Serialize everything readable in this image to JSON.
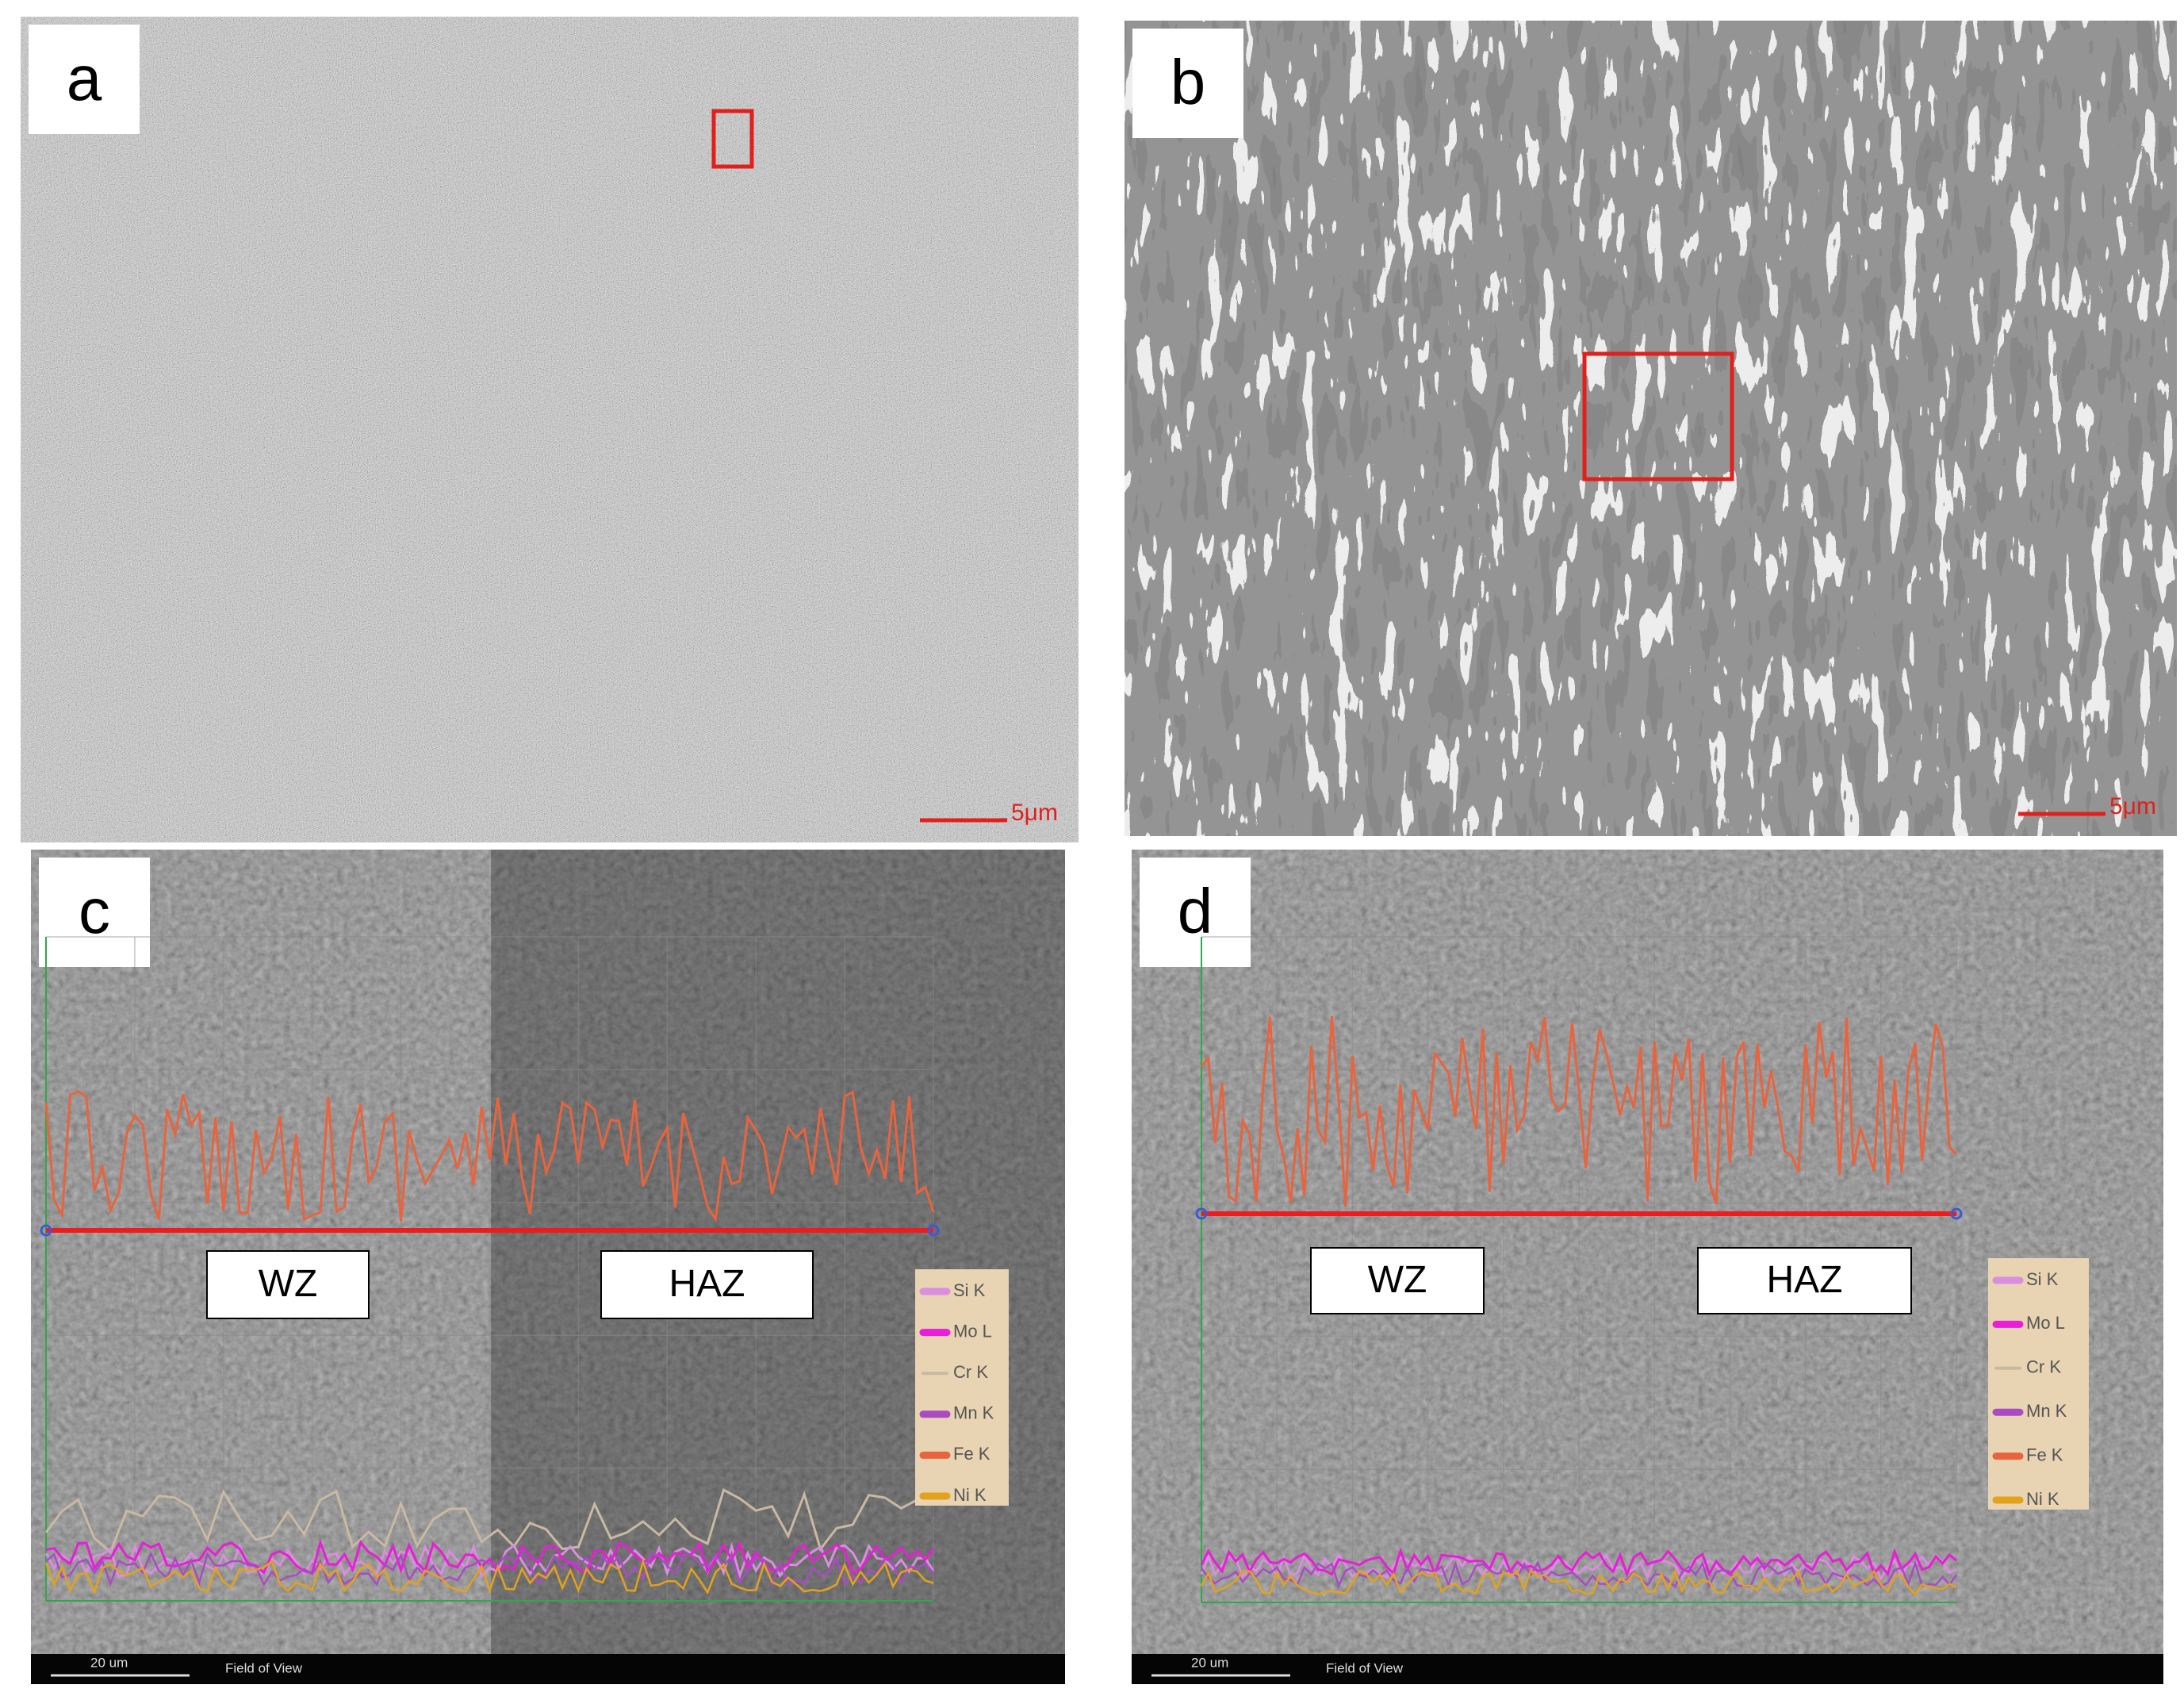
{
  "panels": [
    {
      "label": "a",
      "scale_bar": "5μm"
    },
    {
      "label": "b",
      "scale_bar": "5μm"
    },
    {
      "label": "c",
      "zones": [
        "WZ",
        "HAZ"
      ],
      "legend": [
        {
          "name": "Si K",
          "color": "#d98ee0"
        },
        {
          "name": "Mo L",
          "color": "#e81ed8"
        },
        {
          "name": "Cr K",
          "color": "#c9b9a2"
        },
        {
          "name": "Mn K",
          "color": "#a94cc4"
        },
        {
          "name": "Fe K",
          "color": "#e8643e"
        },
        {
          "name": "Ni K",
          "color": "#e3a21c"
        }
      ],
      "scale_bar": "20 um",
      "footer": "Field of View"
    },
    {
      "label": "d",
      "zones": [
        "WZ",
        "HAZ"
      ],
      "legend": [
        {
          "name": "Si K",
          "color": "#d98ee0"
        },
        {
          "name": "Mo L",
          "color": "#e81ed8"
        },
        {
          "name": "Cr K",
          "color": "#c9b9a2"
        },
        {
          "name": "Mn K",
          "color": "#a94cc4"
        },
        {
          "name": "Fe K",
          "color": "#e8643e"
        },
        {
          "name": "Ni K",
          "color": "#e3a21c"
        }
      ],
      "scale_bar": "20 um",
      "footer": "Field of View"
    }
  ]
}
